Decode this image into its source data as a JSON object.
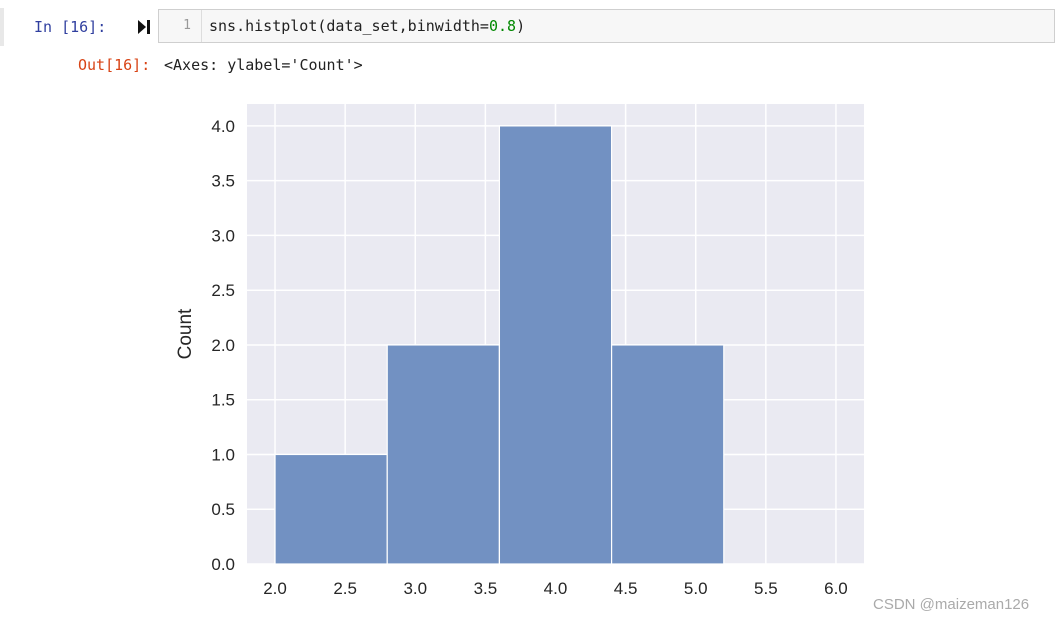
{
  "cell": {
    "prompt_in": "In  [16]:",
    "line_number": "1",
    "code_prefix": "sns.histplot(data_set,binwidth=",
    "code_number": "0.8",
    "code_suffix": ")",
    "prompt_out": "Out[16]:",
    "output_text": "<Axes: ylabel='Count'>"
  },
  "icons": {
    "run": "run-cell-icon"
  },
  "watermark": "CSDN @maizeman126",
  "chart_data": {
    "type": "bar",
    "style": "seaborn-histogram",
    "bins": [
      {
        "start": 2.0,
        "end": 2.8,
        "count": 1
      },
      {
        "start": 2.8,
        "end": 3.6,
        "count": 2
      },
      {
        "start": 3.6,
        "end": 4.4,
        "count": 4
      },
      {
        "start": 4.4,
        "end": 5.2,
        "count": 2
      }
    ],
    "ylabel": "Count",
    "xlabel": "",
    "xlim": [
      1.8,
      6.2
    ],
    "ylim": [
      0,
      4.2
    ],
    "xticks": [
      "2.0",
      "2.5",
      "3.0",
      "3.5",
      "4.0",
      "4.5",
      "5.0",
      "5.5",
      "6.0"
    ],
    "yticks": [
      "0.0",
      "0.5",
      "1.0",
      "1.5",
      "2.0",
      "2.5",
      "3.0",
      "3.5",
      "4.0"
    ],
    "grid": true,
    "colors": {
      "bar": "#7291c2",
      "plot_bg": "#eaeaf2",
      "grid": "#ffffff"
    }
  }
}
